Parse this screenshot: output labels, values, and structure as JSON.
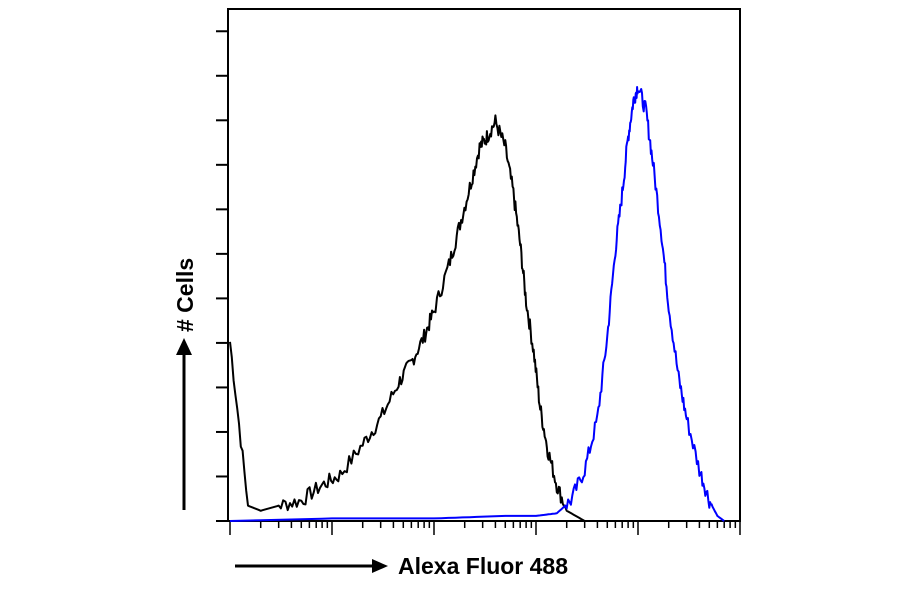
{
  "chart_data": {
    "type": "area",
    "title": "",
    "xlabel": "Alexa Fluor 488",
    "ylabel": "# Cells",
    "x_scale": "log",
    "xlim": [
      1,
      100000
    ],
    "ylim": [
      0,
      100
    ],
    "grid": false,
    "legend": "none",
    "series": [
      {
        "color": "#000000",
        "x": [
          1,
          1.5,
          2,
          3,
          5,
          8,
          12,
          20,
          30,
          45,
          60,
          80,
          100,
          140,
          180,
          230,
          280,
          330,
          400,
          500,
          600,
          700,
          800,
          950,
          1100,
          1300,
          1600,
          2000,
          3000
        ],
        "y": [
          35,
          3,
          2,
          3,
          4,
          7,
          9,
          15,
          20,
          27,
          31,
          36,
          41,
          50,
          58,
          66,
          73,
          75,
          78,
          73,
          64,
          54,
          43,
          33,
          22,
          14,
          7,
          2,
          0
        ]
      },
      {
        "color": "#0000ff",
        "x": [
          1,
          10,
          100,
          500,
          1000,
          1600,
          2200,
          3000,
          4000,
          5000,
          6000,
          7000,
          8000,
          9000,
          10000,
          12000,
          14000,
          17000,
          20000,
          25000,
          30000,
          40000,
          50000,
          60000,
          70000
        ],
        "y": [
          0,
          0.5,
          0.5,
          1,
          1,
          1.5,
          4,
          10,
          20,
          36,
          53,
          64,
          75,
          82,
          85,
          80,
          70,
          56,
          42,
          28,
          20,
          10,
          4,
          1,
          0
        ]
      }
    ]
  }
}
